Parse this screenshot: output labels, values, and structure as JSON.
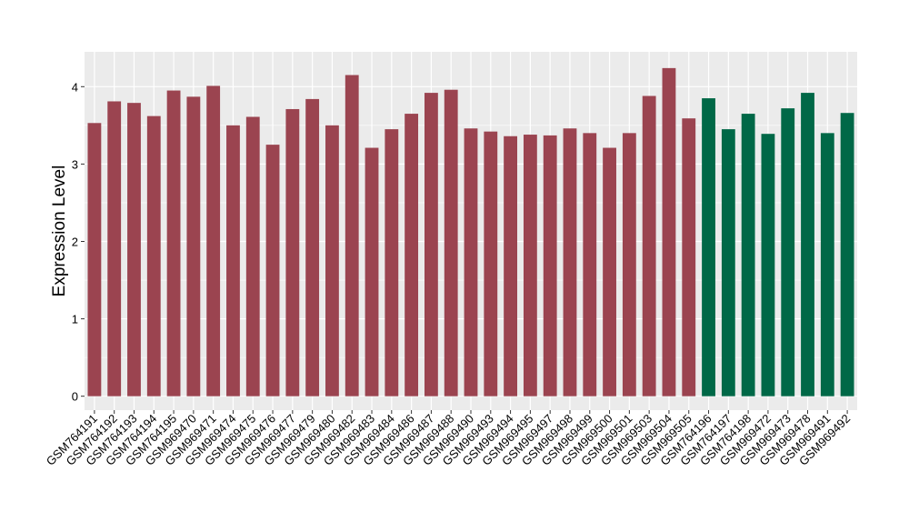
{
  "chart_data": {
    "type": "bar",
    "ylabel": "Expression Level",
    "xlabel": "",
    "title": "",
    "ylim": [
      -0.18,
      4.45
    ],
    "yticks": [
      0,
      1,
      2,
      3,
      4
    ],
    "grid": true,
    "legend": "none",
    "categories": [
      "GSM764191",
      "GSM764192",
      "GSM764193",
      "GSM764194",
      "GSM764195",
      "GSM969470",
      "GSM969471",
      "GSM969474",
      "GSM969475",
      "GSM969476",
      "GSM969477",
      "GSM969479",
      "GSM969480",
      "GSM969482",
      "GSM969483",
      "GSM969484",
      "GSM969486",
      "GSM969487",
      "GSM969488",
      "GSM969490",
      "GSM969493",
      "GSM969494",
      "GSM969495",
      "GSM969497",
      "GSM969498",
      "GSM969499",
      "GSM969500",
      "GSM969501",
      "GSM969503",
      "GSM969504",
      "GSM969505",
      "GSM764196",
      "GSM764197",
      "GSM764198",
      "GSM969472",
      "GSM969473",
      "GSM969478",
      "GSM969491",
      "GSM969492"
    ],
    "values": [
      3.53,
      3.81,
      3.79,
      3.62,
      3.95,
      3.87,
      4.01,
      3.5,
      3.61,
      3.25,
      3.71,
      3.84,
      3.5,
      4.15,
      3.21,
      3.45,
      3.65,
      3.92,
      3.96,
      3.46,
      3.42,
      3.36,
      3.38,
      3.37,
      3.46,
      3.4,
      3.21,
      3.4,
      3.88,
      4.24,
      3.59,
      3.85,
      3.45,
      3.65,
      3.39,
      3.72,
      3.92,
      3.4,
      3.66
    ],
    "bar_colors": [
      "#9b4450",
      "#9b4450",
      "#9b4450",
      "#9b4450",
      "#9b4450",
      "#9b4450",
      "#9b4450",
      "#9b4450",
      "#9b4450",
      "#9b4450",
      "#9b4450",
      "#9b4450",
      "#9b4450",
      "#9b4450",
      "#9b4450",
      "#9b4450",
      "#9b4450",
      "#9b4450",
      "#9b4450",
      "#9b4450",
      "#9b4450",
      "#9b4450",
      "#9b4450",
      "#9b4450",
      "#9b4450",
      "#9b4450",
      "#9b4450",
      "#9b4450",
      "#9b4450",
      "#9b4450",
      "#9b4450",
      "#006847",
      "#006847",
      "#006847",
      "#006847",
      "#006847",
      "#006847",
      "#006847",
      "#006847"
    ],
    "panel_background": "#ebebeb",
    "grid_color": "#ffffff"
  }
}
